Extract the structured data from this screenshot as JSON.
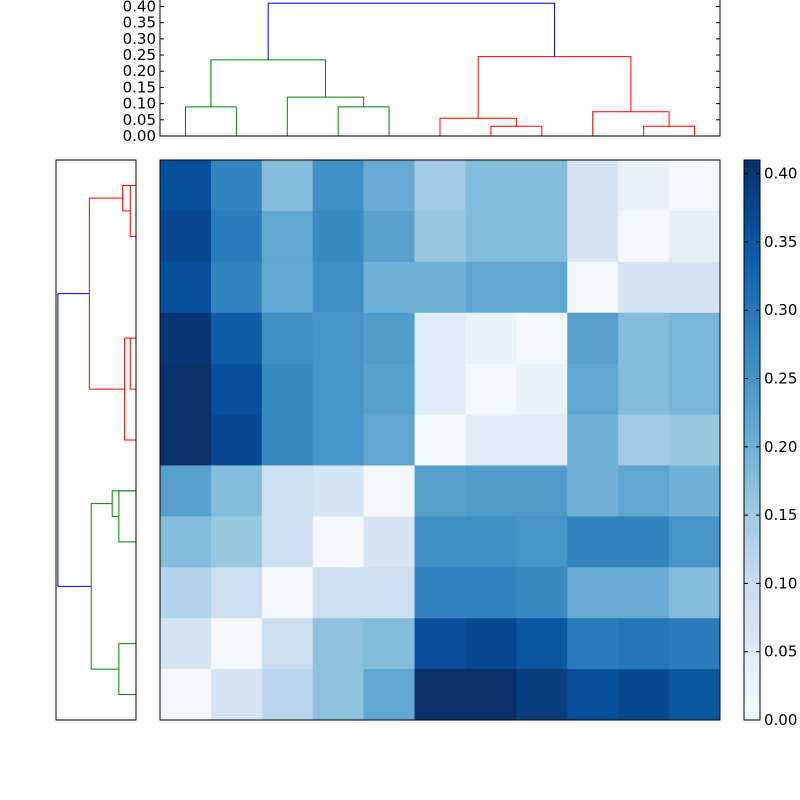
{
  "chart_data": [
    {
      "type": "dendrogram",
      "name": "top-dendrogram",
      "orientation": "top",
      "ylim": [
        0,
        0.42
      ],
      "yticks": [
        "0.00",
        "0.05",
        "0.10",
        "0.15",
        "0.20",
        "0.25",
        "0.30",
        "0.35",
        "0.40"
      ],
      "tick_values": [
        0,
        0.05,
        0.1,
        0.15,
        0.2,
        0.25,
        0.3,
        0.35,
        0.4
      ],
      "leaf_count": 11,
      "links": [
        {
          "left": 0.5,
          "right": 1.5,
          "left_height": 0,
          "right_height": 0,
          "height": 0.09,
          "color": "green"
        },
        {
          "left": 3.5,
          "right": 4.5,
          "left_height": 0,
          "right_height": 0,
          "height": 0.09,
          "color": "green"
        },
        {
          "left": 2.5,
          "right": 4.0,
          "left_height": 0,
          "right_height": 0.09,
          "height": 0.12,
          "color": "green"
        },
        {
          "left": 1.0,
          "right": 3.25,
          "left_height": 0.09,
          "right_height": 0.12,
          "height": 0.235,
          "color": "green"
        },
        {
          "left": 6.5,
          "right": 7.5,
          "left_height": 0,
          "right_height": 0,
          "height": 0.03,
          "color": "red"
        },
        {
          "left": 5.5,
          "right": 7.0,
          "left_height": 0,
          "right_height": 0.03,
          "height": 0.055,
          "color": "red"
        },
        {
          "left": 9.5,
          "right": 10.5,
          "left_height": 0,
          "right_height": 0,
          "height": 0.03,
          "color": "red"
        },
        {
          "left": 8.5,
          "right": 10.0,
          "left_height": 0,
          "right_height": 0.03,
          "height": 0.075,
          "color": "red"
        },
        {
          "left": 6.25,
          "right": 9.25,
          "left_height": 0.055,
          "right_height": 0.075,
          "height": 0.245,
          "color": "red"
        },
        {
          "left": 2.125,
          "right": 7.75,
          "left_height": 0.235,
          "right_height": 0.245,
          "height": 0.41,
          "color": "blue"
        }
      ]
    },
    {
      "type": "dendrogram",
      "name": "left-dendrogram",
      "orientation": "left",
      "xlim": [
        0,
        0.42
      ],
      "leaf_count": 11,
      "links": [
        {
          "left": 0.5,
          "right": 1.5,
          "left_height": 0,
          "right_height": 0,
          "height": 0.03,
          "color": "red"
        },
        {
          "left": 0.5,
          "right": 1.0,
          "left_height": 0,
          "right_height": 0.03,
          "height": 0.07,
          "color": "red"
        },
        {
          "left": 3.5,
          "right": 4.5,
          "left_height": 0,
          "right_height": 0,
          "height": 0.03,
          "color": "red"
        },
        {
          "left": 3.5,
          "right": 5.5,
          "left_height": 0.03,
          "right_height": 0,
          "height": 0.06,
          "color": "red"
        },
        {
          "left": 0.75,
          "right": 4.5,
          "left_height": 0.07,
          "right_height": 0.06,
          "height": 0.245,
          "color": "red"
        },
        {
          "left": 6.5,
          "right": 7.5,
          "left_height": 0,
          "right_height": 0,
          "height": 0.09,
          "color": "green"
        },
        {
          "left": 6.5,
          "right": 7.0,
          "left_height": 0,
          "right_height": 0.09,
          "height": 0.125,
          "color": "green"
        },
        {
          "left": 9.5,
          "right": 10.5,
          "left_height": 0,
          "right_height": 0,
          "height": 0.09,
          "color": "green"
        },
        {
          "left": 6.75,
          "right": 10.0,
          "left_height": 0.125,
          "right_height": 0.09,
          "height": 0.235,
          "color": "green"
        },
        {
          "left": 2.625,
          "right": 8.375,
          "left_height": 0.245,
          "right_height": 0.235,
          "height": 0.41,
          "color": "blue"
        }
      ]
    },
    {
      "type": "heatmap",
      "name": "distance-heatmap",
      "colormap": "Blues",
      "vmin": 0,
      "vmax": 0.41,
      "rows": 11,
      "cols": 11,
      "values": [
        [
          0.36,
          0.28,
          0.18,
          0.26,
          0.21,
          0.15,
          0.18,
          0.18,
          0.07,
          0.03,
          0.01
        ],
        [
          0.37,
          0.29,
          0.22,
          0.27,
          0.23,
          0.16,
          0.18,
          0.18,
          0.07,
          0.01,
          0.04
        ],
        [
          0.36,
          0.28,
          0.22,
          0.26,
          0.2,
          0.2,
          0.22,
          0.22,
          0.01,
          0.07,
          0.07
        ],
        [
          0.4,
          0.34,
          0.26,
          0.25,
          0.24,
          0.05,
          0.03,
          0.01,
          0.23,
          0.18,
          0.19
        ],
        [
          0.41,
          0.36,
          0.27,
          0.25,
          0.23,
          0.05,
          0.01,
          0.03,
          0.22,
          0.18,
          0.19
        ],
        [
          0.41,
          0.37,
          0.27,
          0.25,
          0.22,
          0.01,
          0.05,
          0.05,
          0.2,
          0.15,
          0.16
        ],
        [
          0.23,
          0.18,
          0.09,
          0.07,
          0.01,
          0.23,
          0.24,
          0.24,
          0.2,
          0.22,
          0.2
        ],
        [
          0.18,
          0.16,
          0.09,
          0.01,
          0.07,
          0.26,
          0.26,
          0.25,
          0.28,
          0.28,
          0.25
        ],
        [
          0.13,
          0.09,
          0.01,
          0.09,
          0.09,
          0.28,
          0.28,
          0.27,
          0.21,
          0.21,
          0.18
        ],
        [
          0.07,
          0.01,
          0.09,
          0.17,
          0.18,
          0.36,
          0.37,
          0.35,
          0.29,
          0.3,
          0.29
        ],
        [
          0.01,
          0.07,
          0.12,
          0.17,
          0.22,
          0.41,
          0.41,
          0.39,
          0.36,
          0.37,
          0.35
        ]
      ]
    },
    {
      "type": "colorbar",
      "name": "colorbar",
      "vmin": 0,
      "vmax": 0.41,
      "ticks": [
        "0.00",
        "0.05",
        "0.10",
        "0.15",
        "0.20",
        "0.25",
        "0.30",
        "0.35",
        "0.40"
      ],
      "tick_values": [
        0,
        0.05,
        0.1,
        0.15,
        0.2,
        0.25,
        0.3,
        0.35,
        0.4
      ]
    }
  ],
  "colors": {
    "green": "#008000",
    "red": "#ff0000",
    "blue": "#0000ff",
    "axis": "#000000"
  }
}
